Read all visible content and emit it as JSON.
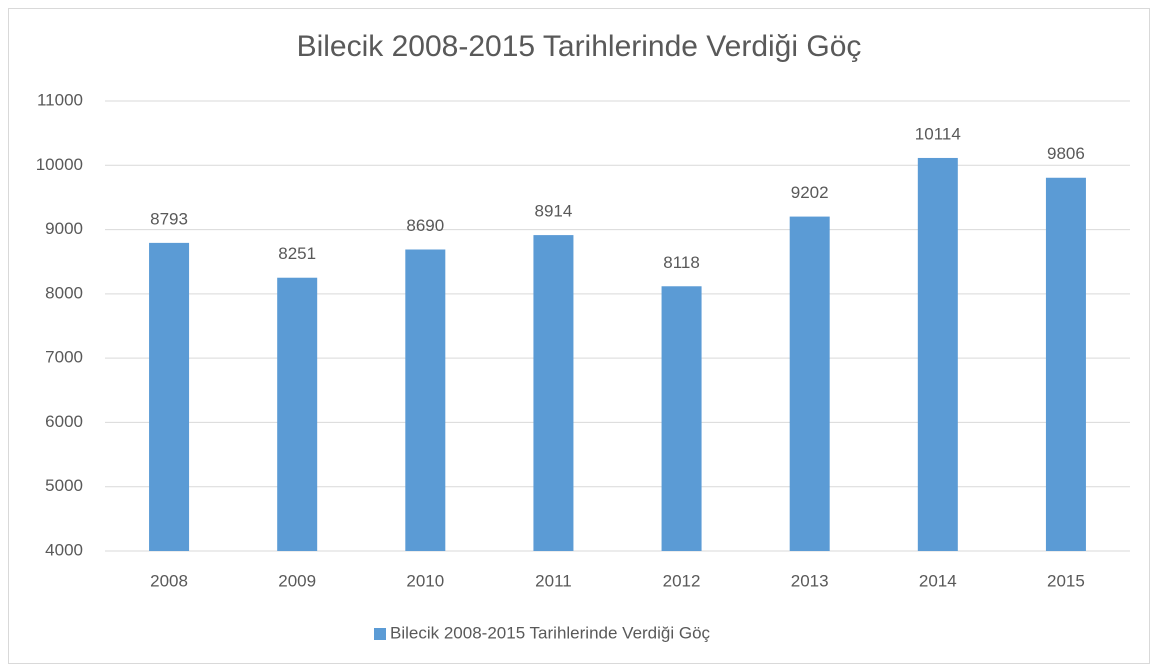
{
  "chart_data": {
    "type": "bar",
    "title": "Bilecik 2008-2015 Tarihlerinde Verdiği Göç",
    "categories": [
      "2008",
      "2009",
      "2010",
      "2011",
      "2012",
      "2013",
      "2014",
      "2015"
    ],
    "series": [
      {
        "name": "Bilecik 2008-2015 Tarihlerinde Verdiği Göç",
        "color": "#5b9bd5",
        "values": [
          8793,
          8251,
          8690,
          8914,
          8118,
          9202,
          10114,
          9806
        ]
      }
    ],
    "ylim": [
      4000,
      11000
    ],
    "yticks": [
      4000,
      5000,
      6000,
      7000,
      8000,
      9000,
      10000,
      11000
    ],
    "grid": true,
    "legend": "bottom"
  }
}
